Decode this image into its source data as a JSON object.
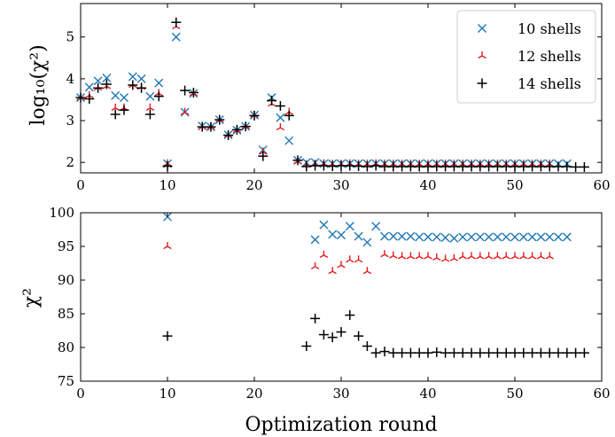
{
  "chart_data": [
    {
      "type": "scatter",
      "panel": "top",
      "title": "",
      "xlabel": "",
      "ylabel": "log₁₀(χ²)",
      "xlim": [
        0,
        60
      ],
      "ylim": [
        1.75,
        5.8
      ],
      "xticks": [
        0,
        10,
        20,
        30,
        40,
        50,
        60
      ],
      "yticks": [
        2,
        3,
        4,
        5
      ],
      "legend_position": "top-right",
      "grid": false,
      "series": [
        {
          "name": "10 shells",
          "color": "#1f77b4",
          "marker": "x",
          "x": [
            0,
            1,
            2,
            3,
            4,
            5,
            6,
            7,
            8,
            9,
            10,
            11,
            12,
            13,
            14,
            15,
            16,
            17,
            18,
            19,
            20,
            21,
            22,
            23,
            24,
            25,
            26,
            27,
            28,
            29,
            30,
            31,
            32,
            33,
            34,
            35,
            36,
            37,
            38,
            39,
            40,
            41,
            42,
            43,
            44,
            45,
            46,
            47,
            48,
            49,
            50,
            51,
            52,
            53,
            54,
            55,
            56
          ],
          "y": [
            3.55,
            3.8,
            3.95,
            4.02,
            3.6,
            3.55,
            4.05,
            4.0,
            3.58,
            3.9,
            1.97,
            5.0,
            3.2,
            3.65,
            2.87,
            2.85,
            3.02,
            2.66,
            2.77,
            2.86,
            3.13,
            2.3,
            3.55,
            3.07,
            2.52,
            2.05,
            2.0,
            2.0,
            1.97,
            1.97,
            1.97,
            1.97,
            1.97,
            1.97,
            1.97,
            1.97,
            1.97,
            1.97,
            1.97,
            1.97,
            1.97,
            1.97,
            1.97,
            1.97,
            1.97,
            1.97,
            1.97,
            1.97,
            1.97,
            1.97,
            1.97,
            1.97,
            1.97,
            1.97,
            1.97,
            1.97,
            1.97
          ]
        },
        {
          "name": "12 shells",
          "color": "#e41a1c",
          "marker": "tri_down",
          "x": [
            0,
            1,
            2,
            3,
            4,
            5,
            6,
            7,
            8,
            9,
            10,
            11,
            12,
            13,
            14,
            15,
            16,
            17,
            18,
            19,
            20,
            21,
            22,
            23,
            24,
            25,
            26,
            27,
            28,
            29,
            30,
            31,
            32,
            33,
            34,
            35,
            36,
            37,
            38,
            39,
            40,
            41,
            42,
            43,
            44,
            45,
            46,
            47,
            48,
            49,
            50,
            51,
            52,
            53,
            54
          ],
          "y": [
            3.55,
            3.6,
            3.78,
            3.82,
            3.3,
            3.3,
            3.85,
            3.8,
            3.3,
            3.65,
            1.97,
            5.25,
            3.2,
            3.65,
            2.85,
            2.85,
            3.02,
            2.66,
            2.77,
            2.86,
            3.13,
            2.25,
            3.4,
            2.83,
            3.2,
            2.02,
            1.95,
            1.96,
            1.97,
            1.96,
            1.96,
            1.97,
            1.96,
            1.96,
            1.97,
            1.96,
            1.96,
            1.96,
            1.96,
            1.96,
            1.96,
            1.96,
            1.96,
            1.96,
            1.96,
            1.96,
            1.96,
            1.96,
            1.96,
            1.96,
            1.96,
            1.96,
            1.96,
            1.96,
            1.96
          ]
        },
        {
          "name": "14 shells",
          "color": "#000000",
          "marker": "+",
          "x": [
            0,
            1,
            2,
            3,
            4,
            5,
            6,
            7,
            8,
            9,
            10,
            11,
            12,
            13,
            14,
            15,
            16,
            17,
            18,
            19,
            20,
            21,
            22,
            23,
            24,
            25,
            26,
            27,
            28,
            29,
            30,
            31,
            32,
            33,
            34,
            35,
            36,
            37,
            38,
            39,
            40,
            41,
            42,
            43,
            44,
            45,
            46,
            47,
            48,
            49,
            50,
            51,
            52,
            53,
            54,
            55,
            56,
            57,
            58
          ],
          "y": [
            3.55,
            3.52,
            3.78,
            3.87,
            3.15,
            3.25,
            3.85,
            3.78,
            3.15,
            3.58,
            1.91,
            5.35,
            3.72,
            3.67,
            2.85,
            2.85,
            3.02,
            2.65,
            2.78,
            2.86,
            3.12,
            2.15,
            3.48,
            3.35,
            3.12,
            2.05,
            1.9,
            1.92,
            1.92,
            1.91,
            1.92,
            1.92,
            1.91,
            1.9,
            1.92,
            1.9,
            1.9,
            1.9,
            1.9,
            1.9,
            1.9,
            1.9,
            1.9,
            1.9,
            1.9,
            1.9,
            1.9,
            1.9,
            1.9,
            1.9,
            1.9,
            1.9,
            1.9,
            1.9,
            1.9,
            1.9,
            1.9,
            1.89,
            1.89
          ]
        }
      ],
      "legend": [
        {
          "label": "10 shells",
          "marker": "x",
          "color": "#1f77b4"
        },
        {
          "label": "12 shells",
          "marker": "tri_down",
          "color": "#e41a1c"
        },
        {
          "label": "14 shells",
          "marker": "+",
          "color": "#000000"
        }
      ]
    },
    {
      "type": "scatter",
      "panel": "bottom",
      "title": "",
      "xlabel": "Optimization round",
      "ylabel": "χ²",
      "xlim": [
        0,
        60
      ],
      "ylim": [
        75,
        100
      ],
      "xticks": [
        0,
        10,
        20,
        30,
        40,
        50,
        60
      ],
      "yticks": [
        75,
        80,
        85,
        90,
        95,
        100
      ],
      "grid": false,
      "series": [
        {
          "name": "10 shells",
          "color": "#1f77b4",
          "marker": "x",
          "x": [
            10,
            27,
            28,
            29,
            30,
            31,
            32,
            33,
            34,
            35,
            36,
            37,
            38,
            39,
            40,
            41,
            42,
            43,
            44,
            45,
            46,
            47,
            48,
            49,
            50,
            51,
            52,
            53,
            54,
            55,
            56
          ],
          "y": [
            99.4,
            96.0,
            98.2,
            96.8,
            96.7,
            98.0,
            96.5,
            95.6,
            98.0,
            96.5,
            96.5,
            96.5,
            96.5,
            96.4,
            96.4,
            96.4,
            96.3,
            96.2,
            96.4,
            96.4,
            96.4,
            96.4,
            96.4,
            96.4,
            96.4,
            96.4,
            96.4,
            96.4,
            96.4,
            96.4,
            96.4
          ]
        },
        {
          "name": "12 shells",
          "color": "#e41a1c",
          "marker": "tri_down",
          "x": [
            10,
            27,
            28,
            29,
            30,
            31,
            32,
            33,
            35,
            36,
            37,
            38,
            39,
            40,
            41,
            42,
            43,
            44,
            45,
            46,
            47,
            48,
            49,
            50,
            51,
            52,
            53,
            54
          ],
          "y": [
            95.0,
            92.0,
            93.7,
            91.3,
            92.2,
            93.0,
            93.0,
            91.3,
            93.8,
            93.6,
            93.5,
            93.5,
            93.5,
            93.5,
            93.3,
            93.1,
            93.2,
            93.5,
            93.5,
            93.5,
            93.5,
            93.5,
            93.5,
            93.5,
            93.5,
            93.5,
            93.5,
            93.5
          ]
        },
        {
          "name": "14 shells",
          "color": "#000000",
          "marker": "+",
          "x": [
            10,
            26,
            27,
            28,
            29,
            30,
            31,
            32,
            33,
            34,
            35,
            36,
            37,
            38,
            39,
            40,
            41,
            42,
            43,
            44,
            45,
            46,
            47,
            48,
            49,
            50,
            51,
            52,
            53,
            54,
            55,
            56,
            57,
            58
          ],
          "y": [
            81.7,
            80.2,
            84.3,
            81.9,
            81.5,
            82.3,
            84.8,
            81.7,
            80.2,
            79.2,
            79.4,
            79.2,
            79.2,
            79.2,
            79.2,
            79.2,
            79.3,
            79.2,
            79.2,
            79.2,
            79.2,
            79.2,
            79.2,
            79.2,
            79.2,
            79.2,
            79.2,
            79.2,
            79.2,
            79.2,
            79.2,
            79.2,
            79.2,
            79.2
          ]
        }
      ]
    }
  ]
}
